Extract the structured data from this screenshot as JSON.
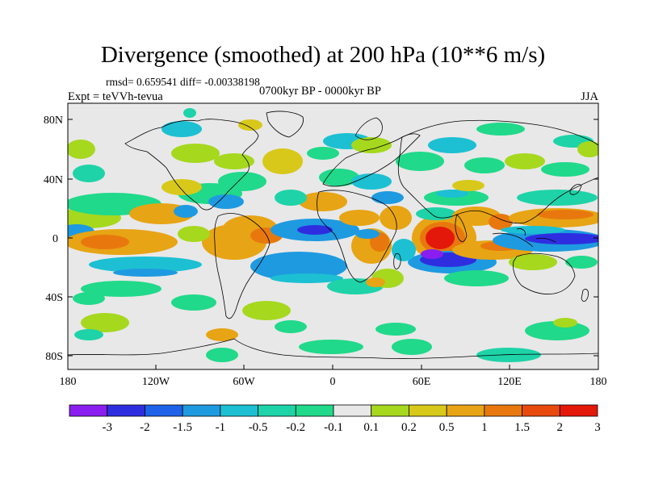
{
  "title": "Divergence (smoothed) at 200 hPa (10**6 m/s)",
  "stats": "rmsd= 0.659541 diff= -0.00338198",
  "experiment": "Expt = teVVh-tevua",
  "period": "0700kyr BP - 0000kyr BP",
  "season": "JJA",
  "lat_ticks": [
    "80N",
    "40N",
    "0",
    "40S",
    "80S"
  ],
  "lon_ticks": [
    "180",
    "120W",
    "60W",
    "0",
    "60E",
    "120E",
    "180"
  ],
  "colorbar": {
    "labels": [
      "-3",
      "-2",
      "-1.5",
      "-1",
      "-0.5",
      "-0.2",
      "-0.1",
      "0.1",
      "0.2",
      "0.5",
      "1",
      "1.5",
      "2",
      "3"
    ],
    "colors": [
      "#8a1ef0",
      "#2e2ee0",
      "#1d62e8",
      "#1e9ae0",
      "#1cc0d2",
      "#1ed3a8",
      "#20d98a",
      "#e8e8e8",
      "#a6d81e",
      "#d8c81a",
      "#e7a414",
      "#e8780e",
      "#e84a0e",
      "#e41808"
    ]
  },
  "map_background": "#e8e8e8"
}
